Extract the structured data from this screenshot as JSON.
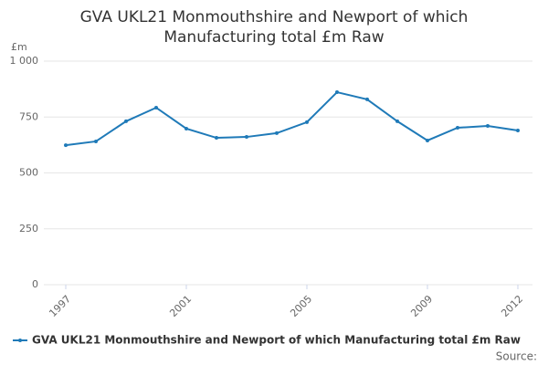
{
  "chart_data": {
    "type": "line",
    "title": "GVA UKL21 Monmouthshire and Newport of which Manufacturing total £m Raw",
    "y_axis_label": "£m",
    "x": [
      1997,
      1998,
      1999,
      2000,
      2001,
      2002,
      2003,
      2004,
      2005,
      2006,
      2007,
      2008,
      2009,
      2010,
      2011,
      2012
    ],
    "series": [
      {
        "name": "GVA UKL21 Monmouthshire and Newport of which Manufacturing total £m Raw",
        "color": "#1f7ab8",
        "values": [
          624,
          641,
          731,
          792,
          698,
          657,
          661,
          678,
          727,
          861,
          829,
          731,
          645,
          702,
          710,
          690
        ]
      }
    ],
    "xlim": [
      1997,
      2012
    ],
    "xticks": [
      1997,
      2001,
      2005,
      2009,
      2012
    ],
    "ylim": [
      0,
      1000
    ],
    "yticks": [
      0,
      250,
      500,
      750,
      {
        "value": 1000,
        "label": "1 000"
      }
    ],
    "grid": true,
    "source_label": "Source:"
  }
}
